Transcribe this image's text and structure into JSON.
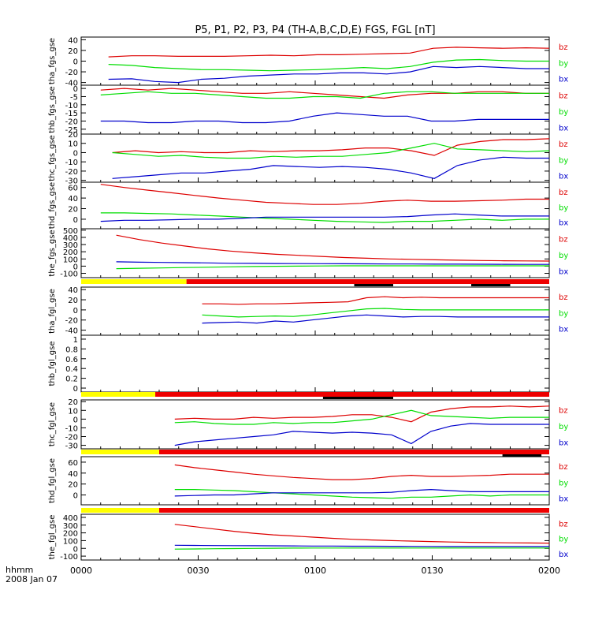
{
  "title": "P5, P1, P2, P3, P4 (TH-A,B,C,D,E) FGS, FGL [nT]",
  "footer": {
    "time_label": "hhmm",
    "date_label": "2008 Jan 07"
  },
  "colors": {
    "bx": "#0000cc",
    "by": "#00dd00",
    "bz": "#dd0000",
    "yellow": "#ffff00",
    "red": "#ee0000",
    "black": "#000000"
  },
  "chart_data": [
    {
      "type": "line",
      "ylabel": "tha_fgs_gse",
      "ylim": [
        -45,
        45
      ],
      "ticks": [
        -40,
        -20,
        0,
        20,
        40
      ],
      "series": [
        {
          "name": "bz",
          "color": "#dd0000",
          "start": 7,
          "end": 120,
          "values": [
            8,
            10,
            10,
            9,
            9,
            9,
            10,
            11,
            10,
            12,
            12,
            13,
            14,
            15,
            24,
            26,
            25,
            24,
            25,
            24
          ]
        },
        {
          "name": "by",
          "color": "#00dd00",
          "start": 7,
          "end": 120,
          "values": [
            -6,
            -8,
            -12,
            -14,
            -16,
            -16,
            -17,
            -18,
            -17,
            -16,
            -14,
            -12,
            -14,
            -10,
            -2,
            2,
            3,
            1,
            0,
            0
          ]
        },
        {
          "name": "bx",
          "color": "#0000cc",
          "start": 7,
          "end": 120,
          "values": [
            -34,
            -33,
            -38,
            -40,
            -34,
            -32,
            -28,
            -26,
            -24,
            -24,
            -22,
            -22,
            -24,
            -20,
            -10,
            -12,
            -10,
            -12,
            -14,
            -14
          ]
        }
      ]
    },
    {
      "type": "line",
      "ylabel": "thb_fgs_gse",
      "ylim": [
        -28,
        2
      ],
      "ticks": [
        -25,
        -20,
        -15,
        -10,
        -5,
        0
      ],
      "series": [
        {
          "name": "bz",
          "color": "#dd0000",
          "start": 5,
          "end": 120,
          "values": [
            -1,
            0,
            -1,
            0,
            -1,
            -2,
            -3,
            -3,
            -2,
            -3,
            -4,
            -5,
            -6,
            -4,
            -3,
            -3,
            -2,
            -2,
            -3,
            -3
          ]
        },
        {
          "name": "by",
          "color": "#00dd00",
          "start": 5,
          "end": 120,
          "values": [
            -4,
            -3,
            -2,
            -3,
            -3,
            -4,
            -5,
            -6,
            -6,
            -5,
            -5,
            -6,
            -3,
            -2,
            -2,
            -3,
            -3,
            -3,
            -3,
            -3
          ]
        },
        {
          "name": "bx",
          "color": "#0000cc",
          "start": 5,
          "end": 120,
          "values": [
            -20,
            -20,
            -21,
            -21,
            -20,
            -20,
            -21,
            -21,
            -20,
            -17,
            -15,
            -16,
            -17,
            -17,
            -20,
            -20,
            -19,
            -19,
            -19,
            -19
          ]
        }
      ]
    },
    {
      "type": "line",
      "ylabel": "thc_fgs_gse",
      "ylim": [
        -32,
        20
      ],
      "ticks": [
        -30,
        -20,
        -10,
        0,
        10,
        20
      ],
      "series": [
        {
          "name": "bz",
          "color": "#dd0000",
          "start": 8,
          "end": 120,
          "values": [
            0,
            2,
            0,
            1,
            0,
            0,
            2,
            1,
            2,
            2,
            3,
            5,
            5,
            2,
            -3,
            8,
            12,
            14,
            14,
            15
          ]
        },
        {
          "name": "by",
          "color": "#00dd00",
          "start": 8,
          "end": 120,
          "values": [
            0,
            -2,
            -4,
            -3,
            -5,
            -6,
            -6,
            -4,
            -5,
            -4,
            -4,
            -2,
            0,
            5,
            10,
            4,
            3,
            2,
            1,
            2
          ]
        },
        {
          "name": "bx",
          "color": "#0000cc",
          "start": 8,
          "end": 120,
          "values": [
            -28,
            -26,
            -24,
            -22,
            -22,
            -20,
            -18,
            -14,
            -15,
            -16,
            -15,
            -16,
            -18,
            -22,
            -28,
            -14,
            -8,
            -5,
            -6,
            -6
          ]
        }
      ]
    },
    {
      "type": "line",
      "ylabel": "thd_fgs_gse",
      "ylim": [
        -18,
        70
      ],
      "ticks": [
        -20,
        0,
        20,
        40,
        60
      ],
      "series": [
        {
          "name": "bz",
          "color": "#dd0000",
          "start": 5,
          "end": 120,
          "values": [
            66,
            60,
            55,
            50,
            45,
            40,
            36,
            32,
            30,
            28,
            28,
            30,
            34,
            36,
            34,
            34,
            35,
            36,
            38,
            38
          ]
        },
        {
          "name": "by",
          "color": "#00dd00",
          "start": 5,
          "end": 120,
          "values": [
            12,
            12,
            11,
            10,
            8,
            6,
            4,
            2,
            0,
            -2,
            -4,
            -5,
            -6,
            -4,
            -4,
            -2,
            0,
            -2,
            0,
            0
          ]
        },
        {
          "name": "bx",
          "color": "#0000cc",
          "start": 5,
          "end": 120,
          "values": [
            -4,
            -2,
            -2,
            -1,
            0,
            0,
            2,
            4,
            4,
            4,
            4,
            4,
            4,
            5,
            8,
            10,
            8,
            6,
            6,
            6
          ]
        }
      ]
    },
    {
      "type": "line",
      "ylabel": "the_fgs_gse",
      "ylim": [
        -160,
        520
      ],
      "ticks": [
        -100,
        0,
        100,
        200,
        300,
        400,
        500
      ],
      "series": [
        {
          "name": "bz",
          "color": "#dd0000",
          "start": 9,
          "end": 120,
          "values": [
            430,
            370,
            320,
            280,
            240,
            210,
            185,
            165,
            150,
            135,
            120,
            110,
            100,
            95,
            88,
            82,
            78,
            75,
            72,
            70
          ]
        },
        {
          "name": "by",
          "color": "#00dd00",
          "start": 9,
          "end": 120,
          "values": [
            -35,
            -30,
            -25,
            -20,
            -15,
            -10,
            -5,
            -2,
            0,
            2,
            5,
            5,
            5,
            5,
            5,
            5,
            5,
            5,
            5,
            5
          ]
        },
        {
          "name": "bx",
          "color": "#0000cc",
          "start": 9,
          "end": 120,
          "values": [
            60,
            55,
            52,
            48,
            45,
            40,
            38,
            36,
            35,
            34,
            33,
            32,
            30,
            30,
            28,
            28,
            26,
            25,
            24,
            24
          ]
        }
      ]
    },
    {
      "type": "line",
      "ylabel": "tha_fgl_gse",
      "ylim": [
        -50,
        45
      ],
      "ticks": [
        -40,
        -20,
        0,
        20,
        40
      ],
      "series": [
        {
          "name": "bz",
          "color": "#dd0000",
          "start": 31,
          "end": 120,
          "values": [
            12,
            12,
            11,
            12,
            12,
            13,
            14,
            15,
            16,
            24,
            26,
            24,
            25,
            24,
            24,
            24,
            24,
            24,
            24,
            24
          ]
        },
        {
          "name": "by",
          "color": "#00dd00",
          "start": 31,
          "end": 120,
          "values": [
            -10,
            -12,
            -14,
            -13,
            -12,
            -13,
            -10,
            -6,
            -2,
            2,
            3,
            1,
            0,
            0,
            0,
            0,
            0,
            0,
            0,
            0
          ]
        },
        {
          "name": "bx",
          "color": "#0000cc",
          "start": 31,
          "end": 120,
          "values": [
            -26,
            -25,
            -24,
            -26,
            -22,
            -24,
            -20,
            -16,
            -12,
            -10,
            -12,
            -14,
            -13,
            -13,
            -14,
            -14,
            -14,
            -14,
            -14,
            -14
          ]
        }
      ]
    },
    {
      "type": "line",
      "ylabel": "thb_fgl_gse",
      "ylim": [
        -0.08,
        1.08
      ],
      "ticks": [
        0.0,
        0.2,
        0.4,
        0.6,
        0.8,
        1.0
      ],
      "series": []
    },
    {
      "type": "line",
      "ylabel": "thc_fgl_gse",
      "ylim": [
        -34,
        22
      ],
      "ticks": [
        -30,
        -20,
        -10,
        0,
        10,
        20
      ],
      "series": [
        {
          "name": "bz",
          "color": "#dd0000",
          "start": 24,
          "end": 120,
          "values": [
            0,
            1,
            0,
            0,
            2,
            1,
            2,
            2,
            3,
            5,
            5,
            2,
            -3,
            8,
            12,
            14,
            14,
            15,
            14,
            15
          ]
        },
        {
          "name": "by",
          "color": "#00dd00",
          "start": 24,
          "end": 120,
          "values": [
            -4,
            -3,
            -5,
            -6,
            -6,
            -4,
            -5,
            -4,
            -4,
            -2,
            0,
            5,
            10,
            4,
            3,
            2,
            1,
            2,
            2,
            2
          ]
        },
        {
          "name": "bx",
          "color": "#0000cc",
          "start": 24,
          "end": 120,
          "values": [
            -30,
            -26,
            -24,
            -22,
            -20,
            -18,
            -14,
            -15,
            -16,
            -15,
            -16,
            -18,
            -28,
            -14,
            -8,
            -5,
            -6,
            -6,
            -6,
            -6
          ]
        }
      ]
    },
    {
      "type": "line",
      "ylabel": "thd_fgl_gse",
      "ylim": [
        -18,
        70
      ],
      "ticks": [
        -20,
        0,
        20,
        40,
        60
      ],
      "series": [
        {
          "name": "bz",
          "color": "#dd0000",
          "start": 24,
          "end": 120,
          "values": [
            55,
            50,
            46,
            42,
            38,
            35,
            32,
            30,
            28,
            28,
            30,
            34,
            36,
            34,
            34,
            35,
            36,
            38,
            38,
            38
          ]
        },
        {
          "name": "by",
          "color": "#00dd00",
          "start": 24,
          "end": 120,
          "values": [
            10,
            10,
            9,
            8,
            6,
            4,
            2,
            0,
            -2,
            -4,
            -5,
            -6,
            -4,
            -4,
            -2,
            0,
            -2,
            0,
            0,
            0
          ]
        },
        {
          "name": "bx",
          "color": "#0000cc",
          "start": 24,
          "end": 120,
          "values": [
            -2,
            -1,
            0,
            0,
            2,
            4,
            4,
            4,
            4,
            4,
            4,
            5,
            8,
            10,
            8,
            6,
            6,
            6,
            6,
            6
          ]
        }
      ]
    },
    {
      "type": "line",
      "ylabel": "the_fgl_gse",
      "ylim": [
        -150,
        440
      ],
      "ticks": [
        -100,
        0,
        100,
        200,
        300,
        400
      ],
      "series": [
        {
          "name": "bz",
          "color": "#dd0000",
          "start": 24,
          "end": 120,
          "values": [
            310,
            280,
            250,
            220,
            195,
            175,
            160,
            145,
            130,
            118,
            108,
            100,
            94,
            88,
            82,
            78,
            75,
            72,
            70,
            68
          ]
        },
        {
          "name": "by",
          "color": "#00dd00",
          "start": 24,
          "end": 120,
          "values": [
            -10,
            -8,
            -5,
            -3,
            0,
            2,
            4,
            5,
            5,
            5,
            5,
            5,
            5,
            5,
            5,
            5,
            5,
            5,
            5,
            5
          ]
        },
        {
          "name": "bx",
          "color": "#0000cc",
          "start": 24,
          "end": 120,
          "values": [
            40,
            38,
            36,
            35,
            34,
            33,
            32,
            30,
            30,
            28,
            28,
            27,
            26,
            25,
            24,
            24,
            24,
            24,
            24,
            24
          ]
        }
      ]
    }
  ],
  "mode_bars": [
    {
      "after_panel": 4,
      "segments": [
        {
          "color": "#ffff00",
          "from": 0,
          "to": 27
        },
        {
          "color": "#ee0000",
          "from": 27,
          "to": 120
        }
      ],
      "black": [
        {
          "from": 70,
          "to": 80
        },
        {
          "from": 100,
          "to": 110
        }
      ]
    },
    {
      "after_panel": 6,
      "segments": [
        {
          "color": "#ffff00",
          "from": 0,
          "to": 19
        },
        {
          "color": "#ee0000",
          "from": 19,
          "to": 120
        }
      ],
      "black": [
        {
          "from": 62,
          "to": 80
        }
      ]
    },
    {
      "after_panel": 7,
      "segments": [
        {
          "color": "#ffff00",
          "from": 0,
          "to": 20
        },
        {
          "color": "#ee0000",
          "from": 20,
          "to": 120
        }
      ],
      "black": [
        {
          "from": 108,
          "to": 118
        }
      ]
    },
    {
      "after_panel": 8,
      "segments": [
        {
          "color": "#ffff00",
          "from": 0,
          "to": 20
        },
        {
          "color": "#ee0000",
          "from": 20,
          "to": 120
        }
      ],
      "black": []
    }
  ],
  "x_axis": {
    "min": 0,
    "max": 120,
    "ticks": [
      {
        "value": 0,
        "label": "0000"
      },
      {
        "value": 30,
        "label": "0030"
      },
      {
        "value": 60,
        "label": "0100"
      },
      {
        "value": 90,
        "label": "0130"
      },
      {
        "value": 120,
        "label": "0200"
      }
    ]
  }
}
